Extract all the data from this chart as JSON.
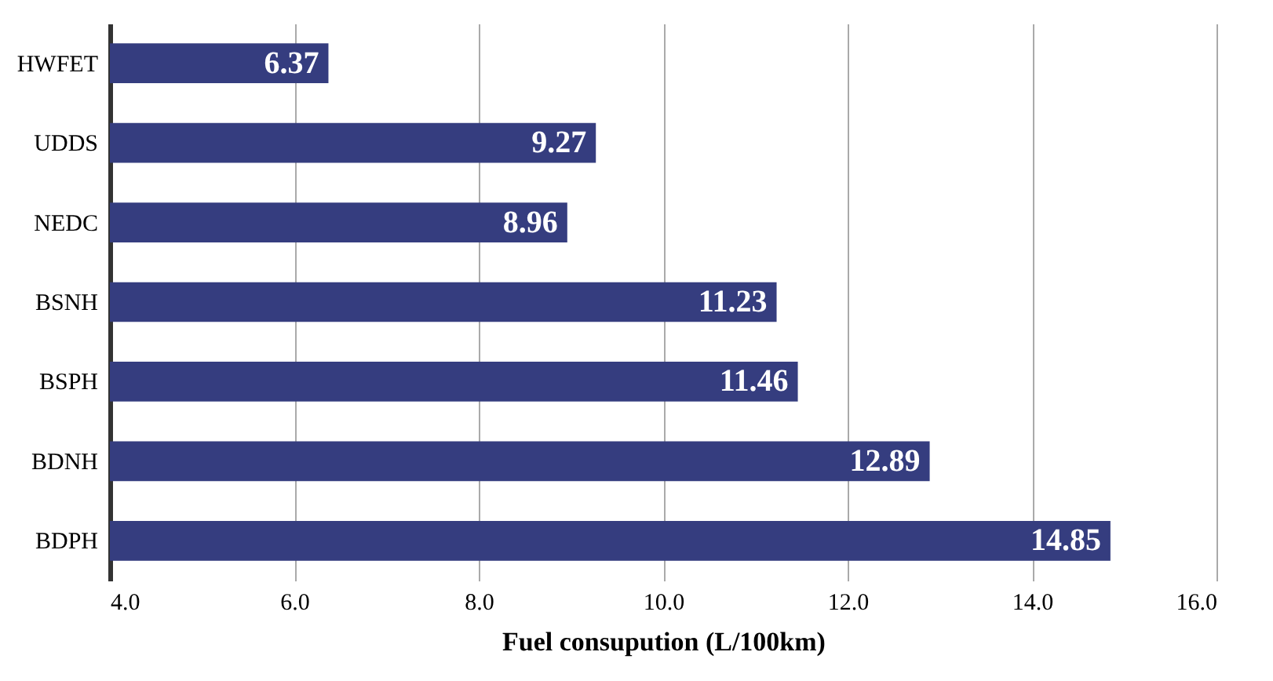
{
  "chart_data": {
    "type": "bar",
    "orientation": "horizontal",
    "xlabel": "Fuel consupution (L/100km)",
    "categories": [
      "HWFET",
      "UDDS",
      "NEDC",
      "BSNH",
      "BSPH",
      "BDNH",
      "BDPH"
    ],
    "values": [
      6.37,
      9.27,
      8.96,
      11.23,
      11.46,
      12.89,
      14.85
    ],
    "color": "#353d7f",
    "data_labels": true,
    "grid": "x",
    "xlim": [
      4,
      16
    ],
    "xticks": [
      {
        "value": 4,
        "label": "4.0"
      },
      {
        "value": 6,
        "label": "6.0"
      },
      {
        "value": 8,
        "label": "8.0"
      },
      {
        "value": 10,
        "label": "10.0"
      },
      {
        "value": 12,
        "label": "12.0"
      },
      {
        "value": 14,
        "label": "14.0"
      },
      {
        "value": 16,
        "label": "16.0"
      }
    ]
  }
}
